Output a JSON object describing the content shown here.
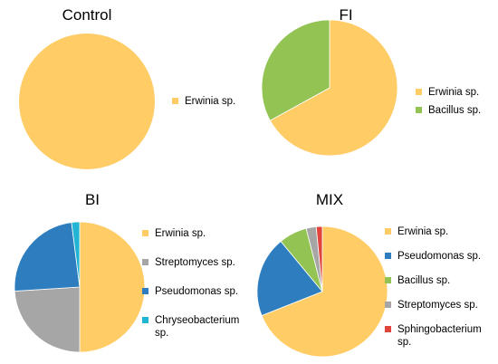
{
  "chart_data": [
    {
      "type": "pie",
      "title": "Control",
      "categories": [
        "Erwinia sp."
      ],
      "values": [
        100
      ],
      "colors": [
        "#FFCC66"
      ],
      "legend": "right"
    },
    {
      "type": "pie",
      "title": "FI",
      "categories": [
        "Erwinia sp.",
        "Bacillus sp."
      ],
      "values": [
        67,
        33
      ],
      "colors": [
        "#FFCC66",
        "#92C353"
      ],
      "legend": "right"
    },
    {
      "type": "pie",
      "title": "BI",
      "categories": [
        "Erwinia sp.",
        "Streptomyces sp.",
        "Pseudomonas sp.",
        "Chryseobacterium sp."
      ],
      "legend_labels": [
        [
          "Erwinia sp."
        ],
        [
          "Streptomyces sp."
        ],
        [
          "Pseudomonas sp."
        ],
        [
          "Chryseobacterium",
          "sp."
        ]
      ],
      "values": [
        50,
        24,
        24,
        2
      ],
      "colors": [
        "#FFCC66",
        "#A6A6A6",
        "#2E7EBF",
        "#21B4D3"
      ],
      "legend": "right"
    },
    {
      "type": "pie",
      "title": "MIX",
      "categories": [
        "Erwinia sp.",
        "Pseudomonas sp.",
        "Bacillus sp.",
        "Streptomyces sp.",
        "Sphingobacterium sp."
      ],
      "legend_labels": [
        [
          "Erwinia sp."
        ],
        [
          "Pseudomonas sp."
        ],
        [
          "Bacillus sp."
        ],
        [
          "Streptomyces sp."
        ],
        [
          "Sphingobacterium",
          "sp."
        ]
      ],
      "values": [
        69,
        20,
        7,
        2.5,
        1.5
      ],
      "colors": [
        "#FFCC66",
        "#2E7EBF",
        "#92C353",
        "#A6A6A6",
        "#E0443A"
      ],
      "legend": "right"
    }
  ]
}
